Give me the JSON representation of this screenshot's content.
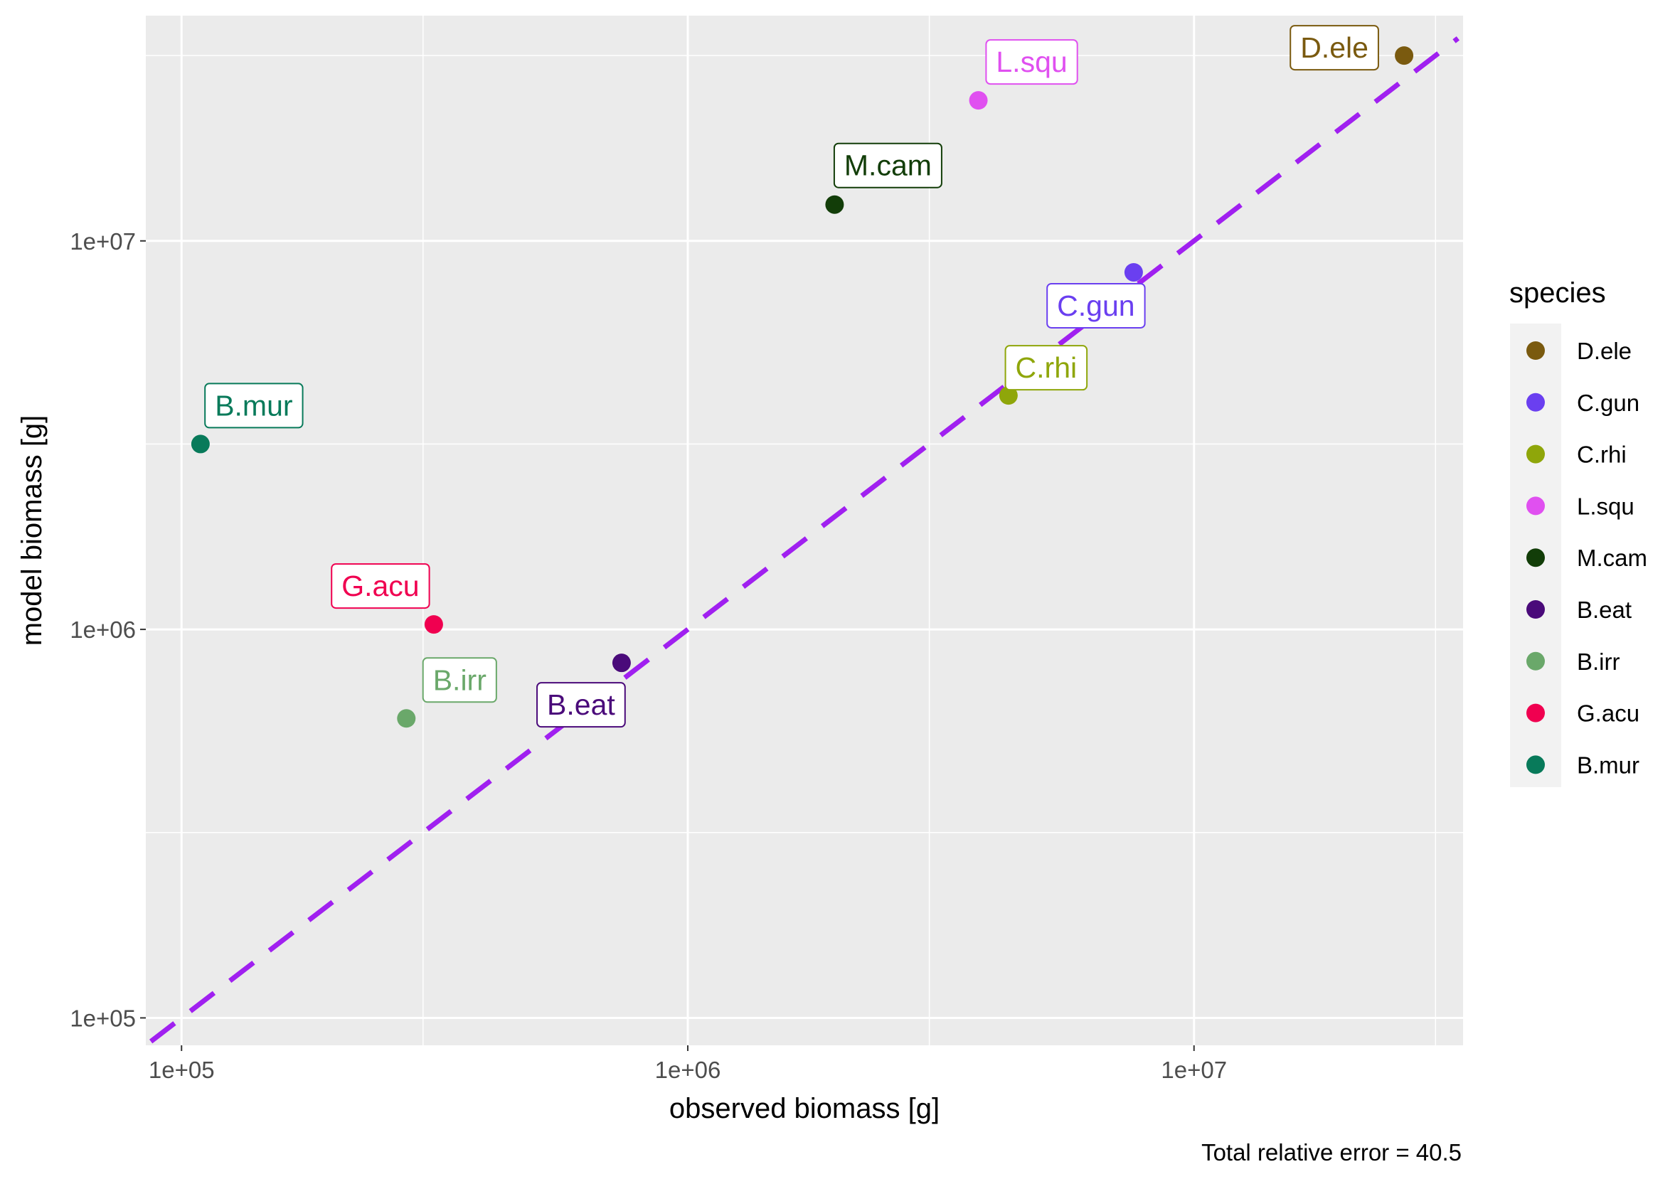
{
  "chart_data": {
    "type": "scatter",
    "title": "",
    "xlabel": "observed biomass [g]",
    "ylabel": "model biomass [g]",
    "x_scale": "log10",
    "y_scale": "log10",
    "xlim": [
      85000,
      34000000
    ],
    "ylim": [
      85000,
      38000000
    ],
    "x_ticks": [
      {
        "value": 100000,
        "label": "1e+05"
      },
      {
        "value": 1000000,
        "label": "1e+06"
      },
      {
        "value": 10000000,
        "label": "1e+07"
      }
    ],
    "y_ticks": [
      {
        "value": 100000,
        "label": "1e+05"
      },
      {
        "value": 1000000,
        "label": "1e+06"
      },
      {
        "value": 10000000,
        "label": "1e+07"
      }
    ],
    "minor_grid": [
      300000,
      3000000,
      30000000
    ],
    "grid": true,
    "reference_line": {
      "slope": 1,
      "intercept": 0,
      "style": "dashed",
      "color": "#a020f0"
    },
    "legend": {
      "title": "species",
      "position": "right"
    },
    "caption": "Total relative error = 40.5",
    "points": [
      {
        "species": "D.ele",
        "observed": 26000000,
        "model": 30000000,
        "color": "#7a5a0f"
      },
      {
        "species": "C.gun",
        "observed": 7600000,
        "model": 8300000,
        "color": "#6a3ff0"
      },
      {
        "species": "C.rhi",
        "observed": 4300000,
        "model": 4000000,
        "color": "#8fa60a"
      },
      {
        "species": "L.squ",
        "observed": 3750000,
        "model": 23000000,
        "color": "#e050f0"
      },
      {
        "species": "M.cam",
        "observed": 1950000,
        "model": 12400000,
        "color": "#123d08"
      },
      {
        "species": "B.eat",
        "observed": 740000,
        "model": 820000,
        "color": "#4a0a7a"
      },
      {
        "species": "B.irr",
        "observed": 278000,
        "model": 590000,
        "color": "#6aa86a"
      },
      {
        "species": "G.acu",
        "observed": 315000,
        "model": 1030000,
        "color": "#f00050"
      },
      {
        "species": "B.mur",
        "observed": 109000,
        "model": 3000000,
        "color": "#087a5a"
      }
    ]
  }
}
